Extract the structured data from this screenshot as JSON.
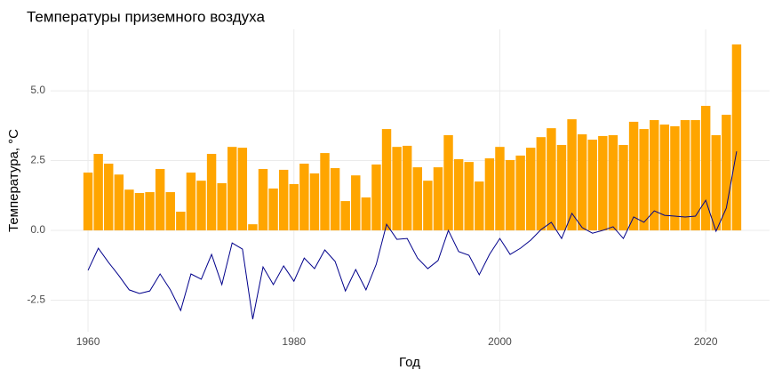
{
  "chart_data": {
    "type": "bar",
    "title": "Температуры приземного воздуха",
    "x_label": "Год",
    "y_label": "Температура, °C",
    "x": [
      1960,
      1961,
      1962,
      1963,
      1964,
      1965,
      1966,
      1967,
      1968,
      1969,
      1970,
      1971,
      1972,
      1973,
      1974,
      1975,
      1976,
      1977,
      1978,
      1979,
      1980,
      1981,
      1982,
      1983,
      1984,
      1985,
      1986,
      1987,
      1988,
      1989,
      1990,
      1991,
      1992,
      1993,
      1994,
      1995,
      1996,
      1997,
      1998,
      1999,
      2000,
      2001,
      2002,
      2003,
      2004,
      2005,
      2006,
      2007,
      2008,
      2009,
      2010,
      2011,
      2012,
      2013,
      2014,
      2015,
      2016,
      2017,
      2018,
      2019,
      2020,
      2021,
      2022,
      2023
    ],
    "series": [
      {
        "type": "bar",
        "color": "#ffa500",
        "values": [
          2.07,
          2.74,
          2.39,
          2.0,
          1.46,
          1.34,
          1.37,
          2.2,
          1.37,
          0.67,
          2.07,
          1.78,
          2.74,
          1.69,
          2.99,
          2.96,
          0.22,
          2.2,
          1.5,
          2.17,
          1.66,
          2.39,
          2.04,
          2.77,
          2.23,
          1.05,
          1.97,
          1.18,
          2.36,
          3.63,
          2.99,
          3.03,
          2.26,
          1.78,
          2.26,
          3.41,
          2.55,
          2.45,
          1.75,
          2.58,
          2.99,
          2.52,
          2.68,
          2.96,
          3.34,
          3.66,
          3.06,
          3.98,
          3.44,
          3.25,
          3.38,
          3.41,
          3.06,
          3.89,
          3.63,
          3.95,
          3.79,
          3.73,
          3.95,
          3.95,
          4.46,
          3.41,
          4.14,
          6.66
        ]
      },
      {
        "type": "line",
        "color": "#00008b",
        "values": [
          -1.43,
          -0.64,
          -1.15,
          -1.62,
          -2.13,
          -2.26,
          -2.17,
          -1.56,
          -2.13,
          -2.87,
          -1.56,
          -1.75,
          -0.86,
          -1.94,
          -0.45,
          -0.67,
          -3.18,
          -1.31,
          -1.94,
          -1.27,
          -1.82,
          -0.99,
          -1.37,
          -0.7,
          -1.11,
          -2.17,
          -1.4,
          -2.13,
          -1.21,
          0.22,
          -0.32,
          -0.29,
          -0.99,
          -1.37,
          -1.08,
          0,
          -0.76,
          -0.89,
          -1.59,
          -0.86,
          -0.29,
          -0.86,
          -0.64,
          -0.35,
          0.03,
          0.29,
          -0.29,
          0.61,
          0.1,
          -0.1,
          0,
          0.13,
          -0.29,
          0.48,
          0.29,
          0.7,
          0.54,
          0.51,
          0.48,
          0.51,
          1.08,
          -0.03,
          0.8,
          2.83
        ]
      }
    ],
    "xlim": [
      1956.37,
      2026.2
    ],
    "xticks": [
      1960,
      1980,
      2000,
      2020
    ],
    "ylim": [
      -3.63,
      7.2
    ],
    "yticks": [
      -2.5,
      {
        "value": 0,
        "label": "0.0"
      },
      2.5,
      {
        "value": 5,
        "label": "5.0"
      }
    ],
    "grid": true
  }
}
